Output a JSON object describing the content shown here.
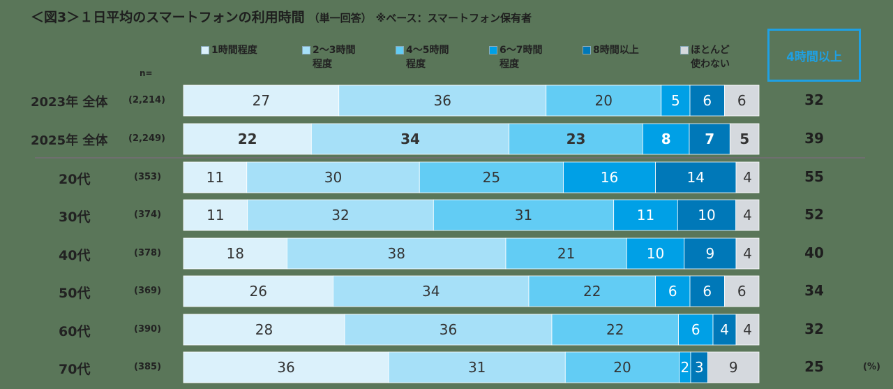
{
  "title": "＜図3＞１日平均のスマートフォンの利用時間",
  "subtitle": "（単一回答）",
  "note": "※ベース：スマートフォン保有者",
  "n_label": "n=",
  "highlight_label": "4時間以上",
  "unit": "(%)",
  "colors": {
    "background": "#5a7659",
    "highlight": "#1fa0e3",
    "series": [
      "#dbf1fb",
      "#a6e0f8",
      "#62ccf4",
      "#00a0e6",
      "#0078b8",
      "#d5d9de"
    ]
  },
  "chart_data": {
    "type": "bar",
    "orientation": "horizontal",
    "stacked": true,
    "title": "＜図3＞１日平均のスマートフォンの利用時間（単一回答）※ベース：スマートフォン保有者",
    "xlabel": "",
    "ylabel": "",
    "xlim": [
      0,
      100
    ],
    "unit": "%",
    "series": [
      {
        "name": "1時間程度",
        "label_lines": [
          "1時間程度"
        ],
        "values": [
          27,
          22,
          11,
          11,
          18,
          26,
          28,
          36
        ]
      },
      {
        "name": "2～3時間程度",
        "label_lines": [
          "2～3時間",
          "程度"
        ],
        "values": [
          36,
          34,
          30,
          32,
          38,
          34,
          36,
          31
        ]
      },
      {
        "name": "4～5時間程度",
        "label_lines": [
          "4～5時間",
          "程度"
        ],
        "values": [
          20,
          23,
          25,
          31,
          21,
          22,
          22,
          20
        ]
      },
      {
        "name": "6～7時間程度",
        "label_lines": [
          "6～7時間",
          "程度"
        ],
        "values": [
          5,
          8,
          16,
          11,
          10,
          6,
          6,
          2
        ]
      },
      {
        "name": "8時間以上",
        "label_lines": [
          "8時間以上"
        ],
        "values": [
          6,
          7,
          14,
          10,
          9,
          6,
          4,
          3
        ]
      },
      {
        "name": "ほとんど使わない",
        "label_lines": [
          "ほとんど",
          "使わない"
        ],
        "values": [
          6,
          5,
          4,
          4,
          4,
          6,
          4,
          9
        ]
      }
    ],
    "rows": [
      {
        "label": "2023年 全体",
        "n": "(2,214)",
        "total": "32",
        "bold": false
      },
      {
        "label": "2025年 全体",
        "n": "(2,249)",
        "total": "39",
        "bold": true
      },
      {
        "label": "20代",
        "n": "(353)",
        "total": "55",
        "bold": false
      },
      {
        "label": "30代",
        "n": "(374)",
        "total": "52",
        "bold": false
      },
      {
        "label": "40代",
        "n": "(378)",
        "total": "40",
        "bold": false
      },
      {
        "label": "50代",
        "n": "(369)",
        "total": "34",
        "bold": false
      },
      {
        "label": "60代",
        "n": "(390)",
        "total": "32",
        "bold": false
      },
      {
        "label": "70代",
        "n": "(385)",
        "total": "25",
        "bold": false
      }
    ],
    "highlight_column": "4時間以上"
  }
}
